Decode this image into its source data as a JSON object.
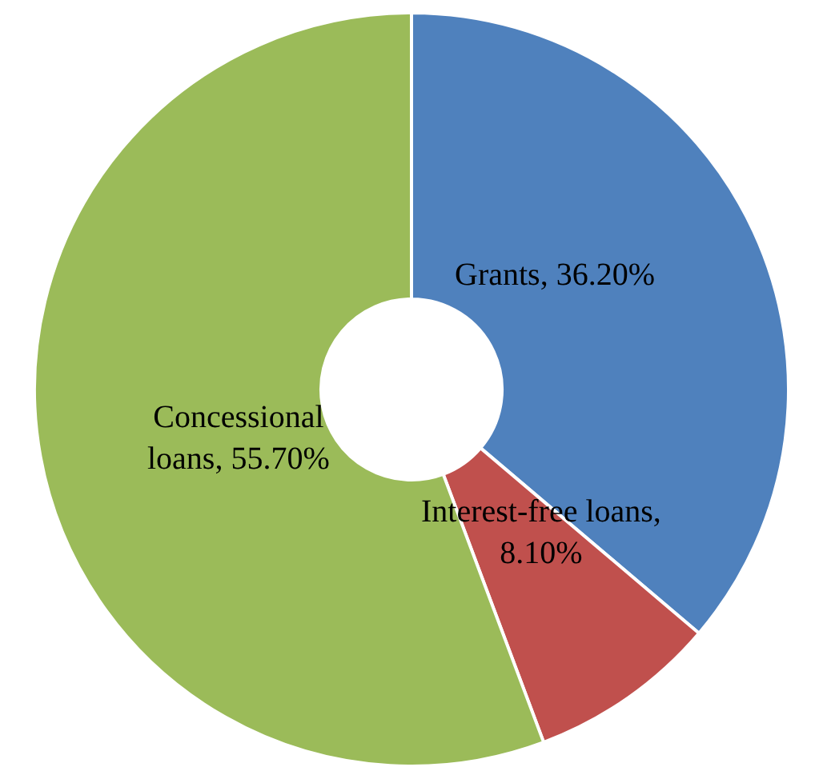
{
  "chart_data": {
    "type": "donut",
    "categories": [
      "Grants, 36.20%",
      "Interest-free loans,\n8.10%",
      "Concessional\nloans, 55.70%"
    ],
    "values": [
      36.2,
      8.1,
      55.7
    ],
    "colors": [
      "#4f81bd",
      "#c0504d",
      "#9bbb59"
    ],
    "legend": false
  }
}
